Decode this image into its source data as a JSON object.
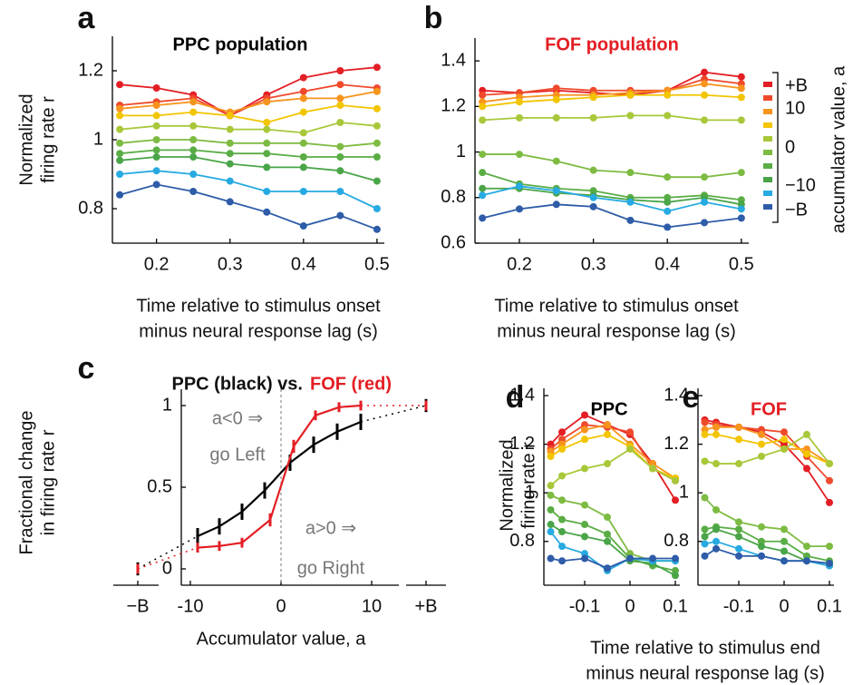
{
  "chart_data": [
    {
      "type": "line",
      "panel": "a",
      "title": "PPC population",
      "title_color": "#000000",
      "ylabel": [
        "Normalized",
        "firing rate r"
      ],
      "xlabel": [
        "Time relative to stimulus onset",
        "minus neural response lag (s)"
      ],
      "x": [
        0.15,
        0.2,
        0.25,
        0.3,
        0.35,
        0.4,
        0.45,
        0.5
      ],
      "xlim": [
        0.14,
        0.51
      ],
      "xticks": [
        0.2,
        0.3,
        0.4,
        0.5
      ],
      "ylim": [
        0.7,
        1.3
      ],
      "yticks": [
        0.8,
        1,
        1.2
      ],
      "series": [
        {
          "color": "#e31e24",
          "values": [
            1.16,
            1.15,
            1.13,
            1.07,
            1.13,
            1.18,
            1.2,
            1.21
          ]
        },
        {
          "color": "#ef4a2c",
          "values": [
            1.1,
            1.11,
            1.12,
            1.07,
            1.12,
            1.14,
            1.16,
            1.15
          ]
        },
        {
          "color": "#f7941d",
          "values": [
            1.09,
            1.1,
            1.11,
            1.08,
            1.11,
            1.12,
            1.12,
            1.14
          ]
        },
        {
          "color": "#f2c500",
          "values": [
            1.07,
            1.07,
            1.08,
            1.07,
            1.05,
            1.08,
            1.1,
            1.09
          ]
        },
        {
          "color": "#a8c83a",
          "values": [
            1.03,
            1.04,
            1.04,
            1.03,
            1.03,
            1.02,
            1.05,
            1.04
          ]
        },
        {
          "color": "#7dbb42",
          "values": [
            0.99,
            1.0,
            1.0,
            0.99,
            0.99,
            0.99,
            0.98,
            0.99
          ]
        },
        {
          "color": "#5aad45",
          "values": [
            0.96,
            0.97,
            0.97,
            0.96,
            0.96,
            0.95,
            0.95,
            0.95
          ]
        },
        {
          "color": "#4aa548",
          "values": [
            0.94,
            0.95,
            0.95,
            0.93,
            0.92,
            0.92,
            0.91,
            0.88
          ]
        },
        {
          "color": "#27aae1",
          "values": [
            0.9,
            0.91,
            0.9,
            0.88,
            0.85,
            0.85,
            0.85,
            0.8
          ]
        },
        {
          "color": "#2e5ca8",
          "values": [
            0.84,
            0.87,
            0.85,
            0.82,
            0.79,
            0.75,
            0.78,
            0.74
          ]
        }
      ]
    },
    {
      "type": "line",
      "panel": "b",
      "title": "FOF population",
      "title_color": "#e31e24",
      "xlabel": [
        "Time relative to stimulus onset",
        "minus neural response lag (s)"
      ],
      "x": [
        0.15,
        0.2,
        0.25,
        0.3,
        0.35,
        0.4,
        0.45,
        0.5
      ],
      "xlim": [
        0.14,
        0.51
      ],
      "xticks": [
        0.2,
        0.3,
        0.4,
        0.5
      ],
      "ylim": [
        0.6,
        1.5
      ],
      "yticks": [
        0.6,
        0.8,
        1,
        1.2,
        1.4
      ],
      "colorbar": {
        "title": "accumulator value, a",
        "labels": [
          "+B",
          "10",
          "0",
          "−10",
          "−B"
        ]
      },
      "series": [
        {
          "color": "#e31e24",
          "values": [
            1.27,
            1.26,
            1.27,
            1.26,
            1.25,
            1.27,
            1.35,
            1.33
          ]
        },
        {
          "color": "#ef4a2c",
          "values": [
            1.25,
            1.26,
            1.28,
            1.27,
            1.27,
            1.27,
            1.32,
            1.3
          ]
        },
        {
          "color": "#f7941d",
          "values": [
            1.22,
            1.24,
            1.25,
            1.25,
            1.26,
            1.27,
            1.3,
            1.28
          ]
        },
        {
          "color": "#f2c500",
          "values": [
            1.2,
            1.22,
            1.23,
            1.24,
            1.25,
            1.25,
            1.25,
            1.24
          ]
        },
        {
          "color": "#a8c83a",
          "values": [
            1.14,
            1.15,
            1.15,
            1.15,
            1.16,
            1.16,
            1.14,
            1.14
          ]
        },
        {
          "color": "#7dbb42",
          "values": [
            0.99,
            0.99,
            0.96,
            0.92,
            0.91,
            0.89,
            0.89,
            0.91
          ]
        },
        {
          "color": "#5aad45",
          "values": [
            0.91,
            0.86,
            0.84,
            0.83,
            0.8,
            0.8,
            0.81,
            0.79
          ]
        },
        {
          "color": "#4aa548",
          "values": [
            0.84,
            0.84,
            0.82,
            0.81,
            0.79,
            0.78,
            0.8,
            0.77
          ]
        },
        {
          "color": "#27aae1",
          "values": [
            0.81,
            0.85,
            0.83,
            0.8,
            0.78,
            0.74,
            0.78,
            0.75
          ]
        },
        {
          "color": "#2e5ca8",
          "values": [
            0.71,
            0.75,
            0.77,
            0.76,
            0.7,
            0.67,
            0.69,
            0.71
          ]
        }
      ]
    },
    {
      "type": "errorline",
      "panel": "c",
      "title": [
        "PPC (black) vs.",
        "FOF (red)"
      ],
      "ylabel": [
        "Fractional change",
        "in firing rate r"
      ],
      "xlabel": [
        "Accumulator value, a"
      ],
      "annotations": [
        "a<0 ⇒",
        "go Left",
        "a>0 ⇒",
        "go Right"
      ],
      "xlim": [
        -11,
        13
      ],
      "xticks": [
        -10,
        0,
        10
      ],
      "ylim": [
        -0.1,
        1.1
      ],
      "yticks": [
        0,
        0.5,
        1
      ],
      "bound_labels": [
        "−B",
        "+B"
      ],
      "series": [
        {
          "color": "#000000",
          "x": [
            -9.2,
            -6.8,
            -4.3,
            -1.8,
            1,
            3.6,
            6.2,
            8.8
          ],
          "values": [
            0.2,
            0.26,
            0.35,
            0.48,
            0.65,
            0.76,
            0.84,
            0.9
          ],
          "errors": [
            0.05,
            0.05,
            0.05,
            0.05,
            0.05,
            0.05,
            0.05,
            0.05
          ],
          "bound_values": [
            0,
            1
          ],
          "bound_errors": [
            0.04,
            0.04
          ]
        },
        {
          "color": "#e31e24",
          "x": [
            -9.2,
            -6.8,
            -4.3,
            -1.2,
            1.4,
            3.8,
            6.4,
            8.8
          ],
          "values": [
            0.13,
            0.14,
            0.16,
            0.3,
            0.75,
            0.94,
            0.99,
            1.0
          ],
          "errors": [
            0.03,
            0.03,
            0.03,
            0.04,
            0.04,
            0.03,
            0.03,
            0.03
          ],
          "bound_values": [
            0,
            1
          ],
          "bound_errors": [
            0.03,
            0.03
          ]
        }
      ]
    },
    {
      "type": "line",
      "panel": "d",
      "title": "PPC",
      "title_color": "#000000",
      "ylabel": [
        "Normalized",
        "firing rate r"
      ],
      "x": [
        -0.175,
        -0.15,
        -0.1,
        -0.05,
        0,
        0.05,
        0.1
      ],
      "xlim": [
        -0.19,
        0.11
      ],
      "xticks": [
        -0.1,
        0,
        0.1
      ],
      "ylim": [
        0.62,
        1.43
      ],
      "yticks": [
        0.8,
        1,
        1.2,
        1.4
      ],
      "series": [
        {
          "color": "#e31e24",
          "values": [
            1.2,
            1.25,
            1.32,
            1.28,
            1.24,
            1.12,
            0.97
          ]
        },
        {
          "color": "#ef4a2c",
          "values": [
            1.18,
            1.22,
            1.28,
            1.27,
            1.25,
            1.1,
            1.05
          ]
        },
        {
          "color": "#f7941d",
          "values": [
            1.17,
            1.2,
            1.26,
            1.28,
            1.2,
            1.12,
            1.06
          ]
        },
        {
          "color": "#f2c500",
          "values": [
            1.15,
            1.18,
            1.22,
            1.24,
            1.19,
            1.1,
            1.06
          ]
        },
        {
          "color": "#a8c83a",
          "values": [
            1.03,
            1.07,
            1.1,
            1.12,
            1.18,
            1.1,
            1.05
          ]
        },
        {
          "color": "#7dbb42",
          "values": [
            0.99,
            0.97,
            0.95,
            0.9,
            0.75,
            0.72,
            0.72
          ]
        },
        {
          "color": "#5aad45",
          "values": [
            0.93,
            0.89,
            0.87,
            0.83,
            0.73,
            0.7,
            0.68
          ]
        },
        {
          "color": "#4aa548",
          "values": [
            0.87,
            0.84,
            0.82,
            0.8,
            0.72,
            0.71,
            0.66
          ]
        },
        {
          "color": "#27aae1",
          "values": [
            0.84,
            0.78,
            0.75,
            0.68,
            0.73,
            0.72,
            0.72
          ]
        },
        {
          "color": "#2e5ca8",
          "values": [
            0.73,
            0.72,
            0.73,
            0.69,
            0.73,
            0.73,
            0.73
          ]
        }
      ]
    },
    {
      "type": "line",
      "panel": "e",
      "title": "FOF",
      "title_color": "#e31e24",
      "xlabel": [
        "Time relative to stimulus end",
        "minus neural response lag (s)"
      ],
      "x": [
        -0.175,
        -0.15,
        -0.1,
        -0.05,
        0,
        0.05,
        0.1
      ],
      "xlim": [
        -0.19,
        0.11
      ],
      "xticks": [
        -0.1,
        0,
        0.1
      ],
      "ylim": [
        0.62,
        1.43
      ],
      "yticks": [
        0.8,
        1,
        1.2,
        1.4
      ],
      "series": [
        {
          "color": "#e31e24",
          "values": [
            1.3,
            1.29,
            1.27,
            1.25,
            1.2,
            1.1,
            0.96
          ]
        },
        {
          "color": "#ef4a2c",
          "values": [
            1.29,
            1.28,
            1.27,
            1.26,
            1.25,
            1.15,
            1.05
          ]
        },
        {
          "color": "#f7941d",
          "values": [
            1.26,
            1.27,
            1.27,
            1.24,
            1.18,
            1.18,
            1.12
          ]
        },
        {
          "color": "#f2c500",
          "values": [
            1.24,
            1.24,
            1.22,
            1.2,
            1.22,
            1.16,
            1.12
          ]
        },
        {
          "color": "#a8c83a",
          "values": [
            1.13,
            1.12,
            1.12,
            1.15,
            1.18,
            1.24,
            1.12
          ]
        },
        {
          "color": "#7dbb42",
          "values": [
            0.98,
            0.93,
            0.88,
            0.86,
            0.85,
            0.78,
            0.78
          ]
        },
        {
          "color": "#5aad45",
          "values": [
            0.85,
            0.86,
            0.85,
            0.8,
            0.8,
            0.74,
            0.72
          ]
        },
        {
          "color": "#4aa548",
          "values": [
            0.82,
            0.85,
            0.82,
            0.78,
            0.76,
            0.72,
            0.7
          ]
        },
        {
          "color": "#27aae1",
          "values": [
            0.79,
            0.8,
            0.77,
            0.74,
            0.72,
            0.72,
            0.7
          ]
        },
        {
          "color": "#2e5ca8",
          "values": [
            0.74,
            0.77,
            0.74,
            0.74,
            0.72,
            0.72,
            0.71
          ]
        }
      ]
    }
  ]
}
